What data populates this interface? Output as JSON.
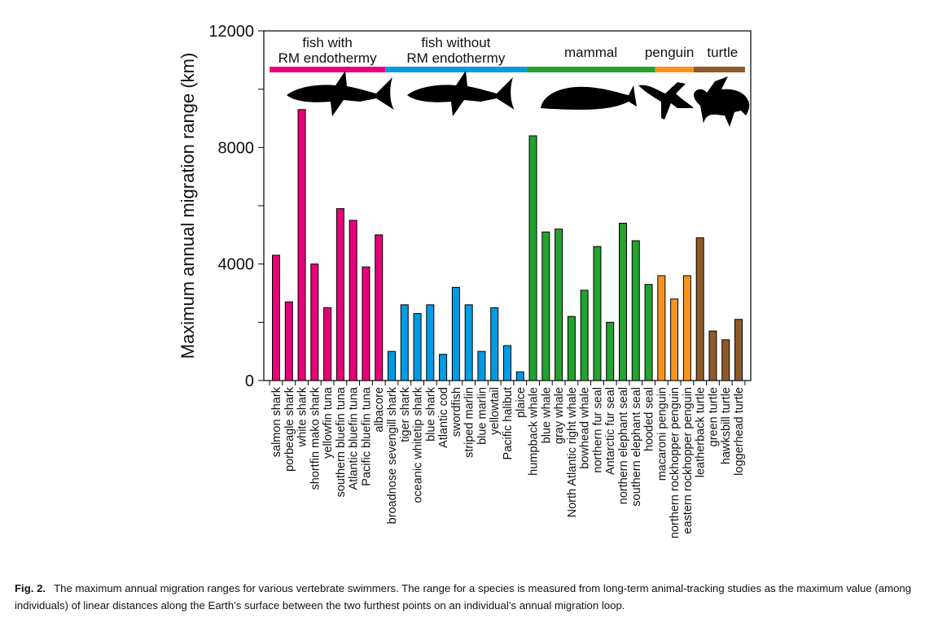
{
  "chart_data": {
    "type": "bar",
    "ylabel": "Maximum annual migration range (km)",
    "ylim": [
      0,
      12000
    ],
    "yticks": [
      0,
      4000,
      8000,
      12000
    ],
    "yminor_ticks": [
      2000,
      6000,
      10000
    ],
    "grid": false,
    "groups": [
      {
        "name": "fish with RM endothermy",
        "label_lines": [
          "fish with",
          "RM endothermy"
        ],
        "color": "#E8007A",
        "silhouette": "shark-silhouette"
      },
      {
        "name": "fish without RM endothermy",
        "label_lines": [
          "fish without",
          "RM endothermy"
        ],
        "color": "#009BE3",
        "silhouette": "shark-silhouette"
      },
      {
        "name": "mammal",
        "label_lines": [
          "mammal"
        ],
        "color": "#23A22E",
        "silhouette": "whale-silhouette"
      },
      {
        "name": "penguin",
        "label_lines": [
          "penguin"
        ],
        "color": "#F7941D",
        "silhouette": "penguin-silhouette"
      },
      {
        "name": "turtle",
        "label_lines": [
          "turtle"
        ],
        "color": "#8E5A2A",
        "silhouette": "turtle-silhouette"
      }
    ],
    "bars": [
      {
        "category": "salmon shark",
        "group": 0,
        "value": 4300
      },
      {
        "category": "porbeagle shark",
        "group": 0,
        "value": 2700
      },
      {
        "category": "white shark",
        "group": 0,
        "value": 9300
      },
      {
        "category": "shortfin mako shark",
        "group": 0,
        "value": 4000
      },
      {
        "category": "yellowfin tuna",
        "group": 0,
        "value": 2500
      },
      {
        "category": "southern bluefin tuna",
        "group": 0,
        "value": 5900
      },
      {
        "category": "Atlantic bluefin tuna",
        "group": 0,
        "value": 5500
      },
      {
        "category": "Pacific bluefin tuna",
        "group": 0,
        "value": 3900
      },
      {
        "category": "albacore",
        "group": 0,
        "value": 5000
      },
      {
        "category": "broadnose sevengill shark",
        "group": 1,
        "value": 1000
      },
      {
        "category": "tiger shark",
        "group": 1,
        "value": 2600
      },
      {
        "category": "oceanic whitetip shark",
        "group": 1,
        "value": 2300
      },
      {
        "category": "blue shark",
        "group": 1,
        "value": 2600
      },
      {
        "category": "Atlantic cod",
        "group": 1,
        "value": 900
      },
      {
        "category": "swordfish",
        "group": 1,
        "value": 3200
      },
      {
        "category": "striped marlin",
        "group": 1,
        "value": 2600
      },
      {
        "category": "blue marlin",
        "group": 1,
        "value": 1000
      },
      {
        "category": "yellowtail",
        "group": 1,
        "value": 2500
      },
      {
        "category": "Pacific halibut",
        "group": 1,
        "value": 1200
      },
      {
        "category": "plaice",
        "group": 1,
        "value": 300
      },
      {
        "category": "humpback whale",
        "group": 2,
        "value": 8400
      },
      {
        "category": "blue whale",
        "group": 2,
        "value": 5100
      },
      {
        "category": "gray whale",
        "group": 2,
        "value": 5200
      },
      {
        "category": "North Atlantic right whale",
        "group": 2,
        "value": 2200
      },
      {
        "category": "bowhead whale",
        "group": 2,
        "value": 3100
      },
      {
        "category": "northern fur seal",
        "group": 2,
        "value": 4600
      },
      {
        "category": "Antarctic fur seal",
        "group": 2,
        "value": 2000
      },
      {
        "category": "northern elephant seal",
        "group": 2,
        "value": 5400
      },
      {
        "category": "southern elephant seal",
        "group": 2,
        "value": 4800
      },
      {
        "category": "hooded seal",
        "group": 2,
        "value": 3300
      },
      {
        "category": "macaroni penguin",
        "group": 3,
        "value": 3600
      },
      {
        "category": "northern rockhopper penguin",
        "group": 3,
        "value": 2800
      },
      {
        "category": "eastern rockhopper penguin",
        "group": 3,
        "value": 3600
      },
      {
        "category": "leatherback turtle",
        "group": 4,
        "value": 4900
      },
      {
        "category": "green turtle",
        "group": 4,
        "value": 1700
      },
      {
        "category": "hawksbill turtle",
        "group": 4,
        "value": 1400
      },
      {
        "category": "loggerhead turtle",
        "group": 4,
        "value": 2100
      }
    ]
  },
  "caption": {
    "label": "Fig. 2.",
    "text": "The maximum annual migration ranges for various vertebrate swimmers. The range for a species is measured from long-term animal-tracking studies as the maximum value (among individuals) of linear distances along the Earth’s surface between the two furthest points on an individual’s annual migration loop."
  }
}
